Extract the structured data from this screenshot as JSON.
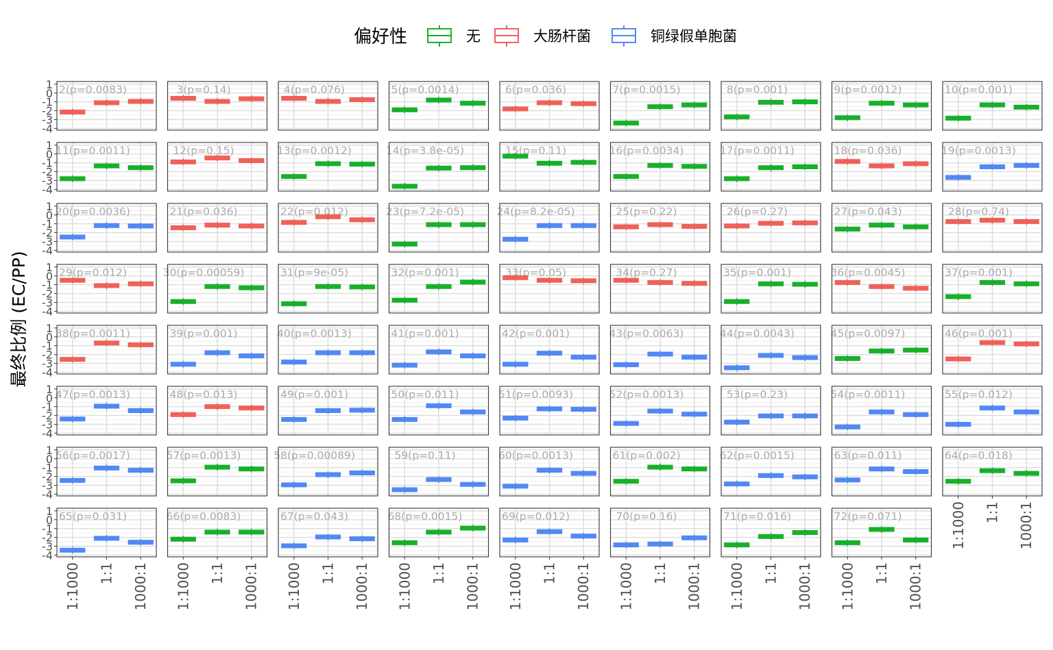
{
  "legend": {
    "title": "偏好性",
    "items": [
      {
        "label": "无",
        "color": "#18b02a"
      },
      {
        "label": "大肠杆菌",
        "color": "#f0605a"
      },
      {
        "label": "铜绿假单胞菌",
        "color": "#5288f4"
      }
    ]
  },
  "colors": {
    "none": "#18b02a",
    "ec": "#f0605a",
    "pp": "#5288f4"
  },
  "chart_data": {
    "type": "box",
    "facet_layout": {
      "rows": 8,
      "cols": 9
    },
    "ylabel": "最终比例 (EC/PP)",
    "y_ticks": [
      "1",
      "0",
      "-1",
      "-2",
      "-3",
      "-4"
    ],
    "ylim": [
      -4.2,
      1.3
    ],
    "categories": [
      "1:1000",
      "1:1",
      "1000:1"
    ],
    "legend_position": "top",
    "grid": true,
    "panels": [
      {
        "label": "2(p=0.0083)",
        "group": "ec",
        "values": [
          -2.15,
          -1.1,
          -0.95
        ]
      },
      {
        "label": "3(p=0.14)",
        "group": "ec",
        "values": [
          -0.6,
          -0.95,
          -0.65
        ]
      },
      {
        "label": "4(p=0.076)",
        "group": "ec",
        "values": [
          -0.6,
          -0.95,
          -0.75
        ]
      },
      {
        "label": "5(p=0.0014)",
        "group": "none",
        "values": [
          -1.9,
          -0.8,
          -1.15
        ]
      },
      {
        "label": "6(p=0.036)",
        "group": "ec",
        "values": [
          -1.8,
          -1.1,
          -1.2
        ]
      },
      {
        "label": "7(p=0.0015)",
        "group": "none",
        "values": [
          -3.4,
          -1.55,
          -1.35
        ]
      },
      {
        "label": "8(p=0.001)",
        "group": "none",
        "values": [
          -2.7,
          -1.05,
          -1.0
        ]
      },
      {
        "label": "9(p=0.0012)",
        "group": "none",
        "values": [
          -2.8,
          -1.15,
          -1.35
        ]
      },
      {
        "label": "10(p=0.001)",
        "group": "none",
        "values": [
          -2.85,
          -1.35,
          -1.6
        ]
      },
      {
        "label": "11(p=0.0011)",
        "group": "none",
        "values": [
          -2.8,
          -1.35,
          -1.55
        ]
      },
      {
        "label": "12(p=0.15)",
        "group": "ec",
        "values": [
          -0.9,
          -0.45,
          -0.75
        ]
      },
      {
        "label": "13(p=0.0012)",
        "group": "none",
        "values": [
          -2.55,
          -1.1,
          -1.15
        ]
      },
      {
        "label": "14(p=3.8e-05)",
        "group": "none",
        "values": [
          -3.65,
          -1.6,
          -1.55
        ]
      },
      {
        "label": "15(p=0.11)",
        "group": "none",
        "values": [
          -0.25,
          -1.05,
          -0.95
        ]
      },
      {
        "label": "16(p=0.0034)",
        "group": "none",
        "values": [
          -2.55,
          -1.3,
          -1.4
        ]
      },
      {
        "label": "17(p=0.0011)",
        "group": "none",
        "values": [
          -2.8,
          -1.55,
          -1.45
        ]
      },
      {
        "label": "18(p=0.036)",
        "group": "ec",
        "values": [
          -0.85,
          -1.35,
          -1.1
        ]
      },
      {
        "label": "19(p=0.0013)",
        "group": "pp",
        "values": [
          -2.65,
          -1.45,
          -1.3
        ]
      },
      {
        "label": "20(p=0.0036)",
        "group": "pp",
        "values": [
          -2.5,
          -1.2,
          -1.25
        ]
      },
      {
        "label": "21(p=0.036)",
        "group": "ec",
        "values": [
          -1.45,
          -1.15,
          -1.25
        ]
      },
      {
        "label": "22(p=0.012)",
        "group": "ec",
        "values": [
          -0.85,
          -0.2,
          -0.55
        ]
      },
      {
        "label": "23(p=7.2e-05)",
        "group": "none",
        "values": [
          -3.3,
          -1.1,
          -1.1
        ]
      },
      {
        "label": "24(p=8.2e-05)",
        "group": "pp",
        "values": [
          -2.75,
          -1.2,
          -1.2
        ]
      },
      {
        "label": "25(p=0.22)",
        "group": "ec",
        "values": [
          -1.35,
          -1.1,
          -1.3
        ]
      },
      {
        "label": "26(p=0.27)",
        "group": "ec",
        "values": [
          -1.25,
          -0.95,
          -0.9
        ]
      },
      {
        "label": "27(p=0.043)",
        "group": "none",
        "values": [
          -1.6,
          -1.15,
          -1.35
        ]
      },
      {
        "label": "28(p=0.74)",
        "group": "ec",
        "values": [
          -0.75,
          -0.6,
          -0.75
        ]
      },
      {
        "label": "29(p=0.012)",
        "group": "ec",
        "values": [
          -0.5,
          -1.1,
          -0.9
        ]
      },
      {
        "label": "30(p=0.00059)",
        "group": "none",
        "values": [
          -2.9,
          -1.2,
          -1.35
        ]
      },
      {
        "label": "31(p=9e-05)",
        "group": "none",
        "values": [
          -3.15,
          -1.2,
          -1.25
        ]
      },
      {
        "label": "32(p=0.001)",
        "group": "none",
        "values": [
          -2.75,
          -1.2,
          -0.7
        ]
      },
      {
        "label": "33(p=0.05)",
        "group": "ec",
        "values": [
          -0.2,
          -0.5,
          -0.55
        ]
      },
      {
        "label": "34(p=0.27)",
        "group": "ec",
        "values": [
          -0.5,
          -0.75,
          -0.85
        ]
      },
      {
        "label": "35(p=0.001)",
        "group": "none",
        "values": [
          -2.9,
          -0.9,
          -0.95
        ]
      },
      {
        "label": "36(p=0.0045)",
        "group": "ec",
        "values": [
          -0.75,
          -1.2,
          -1.4
        ]
      },
      {
        "label": "37(p=0.001)",
        "group": "none",
        "values": [
          -2.35,
          -0.75,
          -0.9
        ]
      },
      {
        "label": "38(p=0.0011)",
        "group": "ec",
        "values": [
          -2.55,
          -0.7,
          -0.9
        ]
      },
      {
        "label": "39(p=0.001)",
        "group": "pp",
        "values": [
          -3.1,
          -1.8,
          -2.15
        ]
      },
      {
        "label": "40(p=0.0013)",
        "group": "pp",
        "values": [
          -2.85,
          -1.8,
          -1.8
        ]
      },
      {
        "label": "41(p=0.001)",
        "group": "pp",
        "values": [
          -3.2,
          -1.7,
          -2.15
        ]
      },
      {
        "label": "42(p=0.001)",
        "group": "pp",
        "values": [
          -3.1,
          -1.85,
          -2.3
        ]
      },
      {
        "label": "43(p=0.0063)",
        "group": "pp",
        "values": [
          -3.15,
          -1.95,
          -2.3
        ]
      },
      {
        "label": "44(p=0.0043)",
        "group": "pp",
        "values": [
          -3.5,
          -2.1,
          -2.35
        ]
      },
      {
        "label": "45(p=0.0097)",
        "group": "none",
        "values": [
          -2.45,
          -1.6,
          -1.5
        ]
      },
      {
        "label": "46(p=0.001)",
        "group": "ec",
        "values": [
          -2.5,
          -0.65,
          -0.8
        ]
      },
      {
        "label": "47(p=0.0013)",
        "group": "pp",
        "values": [
          -2.4,
          -0.95,
          -1.45
        ]
      },
      {
        "label": "48(p=0.013)",
        "group": "ec",
        "values": [
          -1.9,
          -1.0,
          -1.15
        ]
      },
      {
        "label": "49(p=0.001)",
        "group": "pp",
        "values": [
          -2.45,
          -1.45,
          -1.4
        ]
      },
      {
        "label": "50(p=0.011)",
        "group": "pp",
        "values": [
          -2.45,
          -0.9,
          -1.6
        ]
      },
      {
        "label": "51(p=0.0093)",
        "group": "pp",
        "values": [
          -2.3,
          -1.25,
          -1.3
        ]
      },
      {
        "label": "52(p=0.0013)",
        "group": "pp",
        "values": [
          -2.9,
          -1.5,
          -1.85
        ]
      },
      {
        "label": "53(p=0.23)",
        "group": "pp",
        "values": [
          -2.75,
          -2.05,
          -2.05
        ]
      },
      {
        "label": "54(p=0.0011)",
        "group": "pp",
        "values": [
          -3.3,
          -1.6,
          -1.9
        ]
      },
      {
        "label": "55(p=0.012)",
        "group": "pp",
        "values": [
          -3.0,
          -1.15,
          -1.6
        ]
      },
      {
        "label": "56(p=0.0017)",
        "group": "pp",
        "values": [
          -2.45,
          -1.05,
          -1.3
        ]
      },
      {
        "label": "57(p=0.0013)",
        "group": "none",
        "values": [
          -2.5,
          -0.95,
          -1.15
        ]
      },
      {
        "label": "58(p=0.00089)",
        "group": "pp",
        "values": [
          -2.95,
          -1.8,
          -1.6
        ]
      },
      {
        "label": "59(p=0.11)",
        "group": "pp",
        "values": [
          -3.5,
          -2.35,
          -2.9
        ]
      },
      {
        "label": "60(p=0.0013)",
        "group": "pp",
        "values": [
          -3.1,
          -1.3,
          -1.65
        ]
      },
      {
        "label": "61(p=0.002)",
        "group": "none",
        "values": [
          -2.55,
          -0.95,
          -1.15
        ]
      },
      {
        "label": "62(p=0.0015)",
        "group": "pp",
        "values": [
          -2.85,
          -1.9,
          -2.05
        ]
      },
      {
        "label": "63(p=0.011)",
        "group": "pp",
        "values": [
          -2.4,
          -1.15,
          -1.45
        ]
      },
      {
        "label": "64(p=0.018)",
        "group": "none",
        "values": [
          -2.55,
          -1.35,
          -1.65
        ]
      },
      {
        "label": "65(p=0.031)",
        "group": "pp",
        "values": [
          -3.45,
          -2.1,
          -2.55
        ]
      },
      {
        "label": "66(p=0.0083)",
        "group": "none",
        "values": [
          -2.2,
          -1.4,
          -1.4
        ]
      },
      {
        "label": "67(p=0.043)",
        "group": "pp",
        "values": [
          -2.95,
          -1.95,
          -2.15
        ]
      },
      {
        "label": "68(p=0.0015)",
        "group": "none",
        "values": [
          -2.6,
          -1.4,
          -0.95
        ]
      },
      {
        "label": "69(p=0.012)",
        "group": "pp",
        "values": [
          -2.3,
          -1.35,
          -1.85
        ]
      },
      {
        "label": "70(p=0.16)",
        "group": "pp",
        "values": [
          -2.85,
          -2.75,
          -2.05
        ]
      },
      {
        "label": "71(p=0.016)",
        "group": "none",
        "values": [
          -2.85,
          -1.9,
          -1.45
        ]
      },
      {
        "label": "72(p=0.071)",
        "group": "none",
        "values": [
          -2.6,
          -1.1,
          -2.3
        ]
      }
    ]
  }
}
